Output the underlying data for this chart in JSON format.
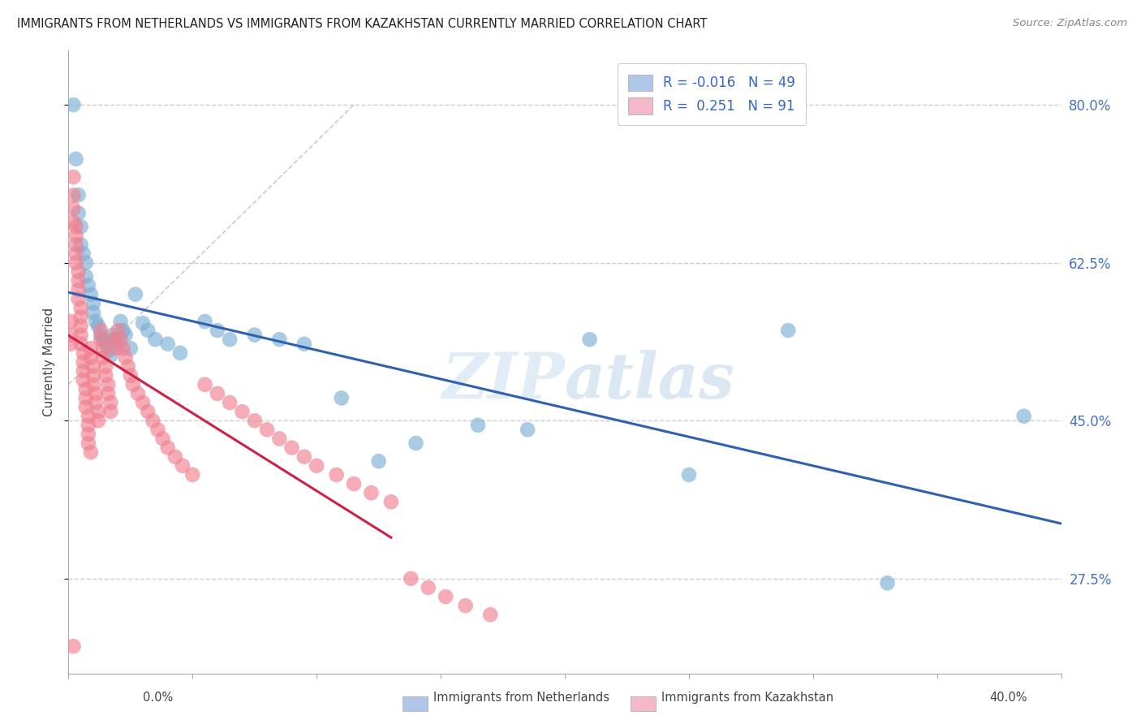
{
  "title": "IMMIGRANTS FROM NETHERLANDS VS IMMIGRANTS FROM KAZAKHSTAN CURRENTLY MARRIED CORRELATION CHART",
  "source": "Source: ZipAtlas.com",
  "ylabel": "Currently Married",
  "y_ticks": [
    0.275,
    0.45,
    0.625,
    0.8
  ],
  "y_tick_labels": [
    "27.5%",
    "45.0%",
    "62.5%",
    "80.0%"
  ],
  "legend1_color": "#aec6e8",
  "legend2_color": "#f4b8c8",
  "scatter_blue_color": "#7bafd4",
  "scatter_pink_color": "#f08090",
  "trendline_blue_color": "#3060b0",
  "trendline_pink_color": "#cc2244",
  "diagonal_color": "#d8d8d8",
  "watermark_zip": "ZIP",
  "watermark_atlas": "atlas",
  "nl_x": [
    0.002,
    0.003,
    0.004,
    0.004,
    0.005,
    0.005,
    0.006,
    0.007,
    0.007,
    0.008,
    0.009,
    0.01,
    0.01,
    0.011,
    0.012,
    0.013,
    0.014,
    0.015,
    0.016,
    0.017,
    0.018,
    0.019,
    0.02,
    0.021,
    0.022,
    0.023,
    0.025,
    0.027,
    0.03,
    0.032,
    0.035,
    0.04,
    0.045,
    0.055,
    0.06,
    0.065,
    0.075,
    0.085,
    0.095,
    0.11,
    0.125,
    0.14,
    0.165,
    0.185,
    0.21,
    0.25,
    0.29,
    0.33,
    0.385
  ],
  "nl_y": [
    0.8,
    0.74,
    0.7,
    0.68,
    0.665,
    0.645,
    0.635,
    0.625,
    0.61,
    0.6,
    0.59,
    0.58,
    0.57,
    0.56,
    0.555,
    0.545,
    0.54,
    0.535,
    0.528,
    0.522,
    0.545,
    0.54,
    0.535,
    0.56,
    0.55,
    0.545,
    0.53,
    0.59,
    0.558,
    0.55,
    0.54,
    0.535,
    0.525,
    0.56,
    0.55,
    0.54,
    0.545,
    0.54,
    0.535,
    0.475,
    0.405,
    0.425,
    0.445,
    0.44,
    0.54,
    0.39,
    0.55,
    0.27,
    0.455
  ],
  "kz_x": [
    0.001,
    0.001,
    0.001,
    0.002,
    0.002,
    0.002,
    0.002,
    0.003,
    0.003,
    0.003,
    0.003,
    0.003,
    0.004,
    0.004,
    0.004,
    0.004,
    0.005,
    0.005,
    0.005,
    0.005,
    0.005,
    0.006,
    0.006,
    0.006,
    0.006,
    0.007,
    0.007,
    0.007,
    0.008,
    0.008,
    0.008,
    0.008,
    0.009,
    0.009,
    0.009,
    0.01,
    0.01,
    0.01,
    0.011,
    0.011,
    0.012,
    0.012,
    0.013,
    0.013,
    0.014,
    0.014,
    0.015,
    0.015,
    0.016,
    0.016,
    0.017,
    0.017,
    0.018,
    0.019,
    0.02,
    0.021,
    0.022,
    0.023,
    0.024,
    0.025,
    0.026,
    0.028,
    0.03,
    0.032,
    0.034,
    0.036,
    0.038,
    0.04,
    0.043,
    0.046,
    0.05,
    0.055,
    0.06,
    0.065,
    0.07,
    0.075,
    0.08,
    0.085,
    0.09,
    0.095,
    0.1,
    0.108,
    0.115,
    0.122,
    0.13,
    0.138,
    0.145,
    0.152,
    0.16,
    0.17,
    0.002
  ],
  "kz_y": [
    0.56,
    0.545,
    0.535,
    0.72,
    0.7,
    0.685,
    0.67,
    0.665,
    0.655,
    0.645,
    0.635,
    0.625,
    0.615,
    0.605,
    0.595,
    0.585,
    0.575,
    0.565,
    0.555,
    0.545,
    0.535,
    0.525,
    0.515,
    0.505,
    0.495,
    0.485,
    0.475,
    0.465,
    0.455,
    0.445,
    0.435,
    0.425,
    0.415,
    0.53,
    0.52,
    0.51,
    0.5,
    0.49,
    0.48,
    0.47,
    0.46,
    0.45,
    0.55,
    0.54,
    0.53,
    0.52,
    0.51,
    0.5,
    0.49,
    0.48,
    0.47,
    0.46,
    0.54,
    0.53,
    0.55,
    0.54,
    0.53,
    0.52,
    0.51,
    0.5,
    0.49,
    0.48,
    0.47,
    0.46,
    0.45,
    0.44,
    0.43,
    0.42,
    0.41,
    0.4,
    0.39,
    0.49,
    0.48,
    0.47,
    0.46,
    0.45,
    0.44,
    0.43,
    0.42,
    0.41,
    0.4,
    0.39,
    0.38,
    0.37,
    0.36,
    0.275,
    0.265,
    0.255,
    0.245,
    0.235,
    0.2
  ]
}
